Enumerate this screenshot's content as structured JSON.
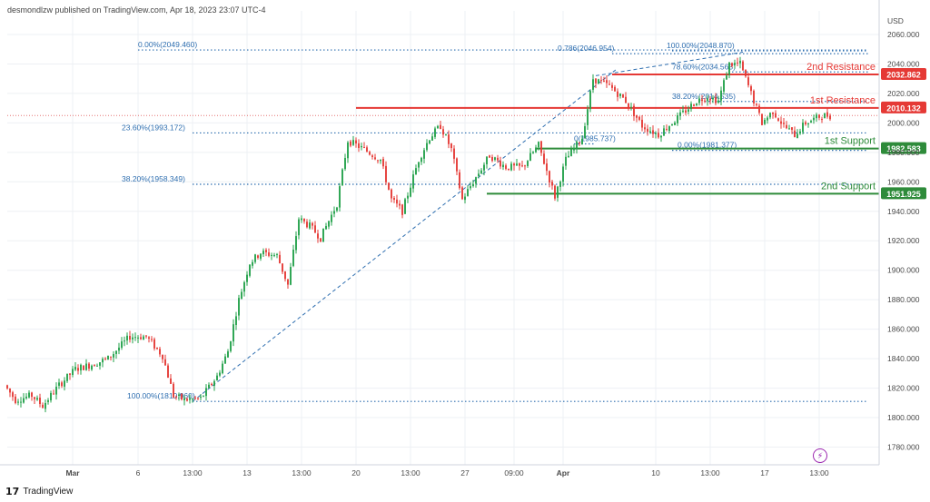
{
  "header": {
    "caption": "desmondlzw published on TradingView.com, Apr 18, 2023 23:07 UTC-4"
  },
  "footer": {
    "brand": "TradingView"
  },
  "colors": {
    "up": "#22a14a",
    "down": "#e53935",
    "resistance": "#e53935",
    "support": "#2e8b3a",
    "fib": "#2f6fb0",
    "grid": "#eef0f4",
    "axis_text": "#4a4a4a"
  },
  "icons": {
    "replay": "lightning-icon"
  },
  "chart_data": {
    "type": "candlestick",
    "yaxis": {
      "unit": "USD",
      "range": [
        1768,
        2076
      ],
      "ticks": [
        2060,
        2040,
        2020,
        2000,
        1980,
        1960,
        1940,
        1920,
        1900,
        1880,
        1860,
        1840,
        1820,
        1800,
        1780
      ],
      "tick_labels": [
        "2060.000",
        "2040.000",
        "2020.000",
        "2000.000",
        "1980.000",
        "1960.000",
        "1940.000",
        "1920.000",
        "1900.000",
        "1880.000",
        "1860.000",
        "1840.000",
        "1820.000",
        "1800.000",
        "1780.000"
      ]
    },
    "xaxis": {
      "range": [
        0,
        160
      ],
      "ticks": [
        {
          "x": 12,
          "label": "Mar",
          "bold": true
        },
        {
          "x": 24,
          "label": "6",
          "bold": false
        },
        {
          "x": 34,
          "label": "13:00",
          "bold": false
        },
        {
          "x": 44,
          "label": "13",
          "bold": false
        },
        {
          "x": 54,
          "label": "13:00",
          "bold": false
        },
        {
          "x": 64,
          "label": "20",
          "bold": false
        },
        {
          "x": 74,
          "label": "13:00",
          "bold": false
        },
        {
          "x": 84,
          "label": "27",
          "bold": false
        },
        {
          "x": 93,
          "label": "09:00",
          "bold": false
        },
        {
          "x": 102,
          "label": "Apr",
          "bold": true
        },
        {
          "x": 119,
          "label": "10",
          "bold": false
        },
        {
          "x": 129,
          "label": "13:00",
          "bold": false
        },
        {
          "x": 139,
          "label": "17",
          "bold": false
        },
        {
          "x": 149,
          "label": "13:00",
          "bold": false
        }
      ]
    },
    "anchors": [
      [
        0,
        1822
      ],
      [
        2,
        1812
      ],
      [
        5,
        1815
      ],
      [
        7,
        1808
      ],
      [
        10,
        1822
      ],
      [
        13,
        1833
      ],
      [
        16,
        1836
      ],
      [
        19,
        1840
      ],
      [
        23,
        1855
      ],
      [
        26,
        1855
      ],
      [
        29,
        1842
      ],
      [
        31,
        1815
      ],
      [
        33,
        1812
      ],
      [
        36,
        1813
      ],
      [
        39,
        1828
      ],
      [
        41,
        1845
      ],
      [
        43,
        1880
      ],
      [
        45,
        1905
      ],
      [
        47,
        1912
      ],
      [
        50,
        1910
      ],
      [
        52,
        1890
      ],
      [
        54,
        1935
      ],
      [
        56,
        1930
      ],
      [
        58,
        1922
      ],
      [
        61,
        1945
      ],
      [
        63,
        1988
      ],
      [
        66,
        1982
      ],
      [
        69,
        1975
      ],
      [
        71,
        1948
      ],
      [
        73,
        1940
      ],
      [
        76,
        1975
      ],
      [
        78,
        1990
      ],
      [
        80,
        1998
      ],
      [
        82,
        1982
      ],
      [
        84,
        1948
      ],
      [
        86,
        1960
      ],
      [
        89,
        1978
      ],
      [
        92,
        1970
      ],
      [
        95,
        1970
      ],
      [
        98,
        1985
      ],
      [
        101,
        1950
      ],
      [
        103,
        1975
      ],
      [
        106,
        1990
      ],
      [
        108,
        2030
      ],
      [
        111,
        2025
      ],
      [
        114,
        2015
      ],
      [
        117,
        1998
      ],
      [
        120,
        1992
      ],
      [
        124,
        2005
      ],
      [
        127,
        2015
      ],
      [
        129,
        2018
      ],
      [
        131,
        2015
      ],
      [
        133,
        2040
      ],
      [
        135,
        2040
      ],
      [
        137,
        2020
      ],
      [
        139,
        2000
      ],
      [
        141,
        2008
      ],
      [
        143,
        1998
      ],
      [
        145,
        1992
      ],
      [
        147,
        2000
      ],
      [
        150,
        2005
      ],
      [
        151,
        2005
      ]
    ],
    "current_price_line": 2005,
    "fibonacci_sets": [
      {
        "levels": [
          {
            "price": 2049.46,
            "label": "0.00%(2049.460)",
            "label_x": 24,
            "x_from": 24,
            "x_to": 158
          },
          {
            "price": 1993.172,
            "label": "23.60%(1993.172)",
            "label_x": 21,
            "x_from": 34,
            "x_to": 158
          },
          {
            "price": 1958.349,
            "label": "38.20%(1958.349)",
            "label_x": 21,
            "x_from": 34,
            "x_to": 158
          },
          {
            "price": 1811,
            "label": "100.00%(1810.960)",
            "label_x": 22,
            "x_from": 34,
            "x_to": 158
          }
        ],
        "trend": {
          "from": [
            34,
            1811
          ],
          "to": [
            112,
            2037
          ]
        }
      },
      {
        "levels": [
          {
            "price": 2046.954,
            "label": "0.786(2046.954)",
            "label_x": 101,
            "x_from": 111,
            "x_to": 158
          },
          {
            "price": 2048.87,
            "label": "100.00%(2048.870)",
            "label_x": 121,
            "x_from": 122,
            "x_to": 158
          },
          {
            "price": 2034.563,
            "label": "78.60%(2034.563)",
            "label_x": 122,
            "x_from": 133,
            "x_to": 158
          },
          {
            "price": 2014.535,
            "label": "38.20%(2014.535)",
            "label_x": 122,
            "x_from": 128,
            "x_to": 158
          },
          {
            "price": 1981.377,
            "label": "0.00%(1981.377)",
            "label_x": 123,
            "x_from": 122,
            "x_to": 158
          },
          {
            "price": 1985.737,
            "label": "0(1985.737)",
            "label_x": 104,
            "x_from": 104,
            "x_to": 108
          }
        ],
        "trend": {
          "from": [
            108,
            2032
          ],
          "to": [
            135,
            2048
          ]
        }
      }
    ],
    "levels": [
      {
        "name": "2nd Resistance",
        "price": 2032.862,
        "value_label": "2032.862",
        "color": "#e53935",
        "x_from": 111,
        "kind": "resistance"
      },
      {
        "name": "1st Resistance",
        "price": 2010.132,
        "value_label": "2010.132",
        "color": "#e53935",
        "x_from": 64,
        "kind": "resistance"
      },
      {
        "name": "1st Support",
        "price": 1982.583,
        "value_label": "1982.583",
        "color": "#2e8b3a",
        "x_from": 97,
        "kind": "support"
      },
      {
        "name": "2nd Support",
        "price": 1951.925,
        "value_label": "1951.925",
        "color": "#2e8b3a",
        "x_from": 88,
        "kind": "support"
      }
    ]
  }
}
